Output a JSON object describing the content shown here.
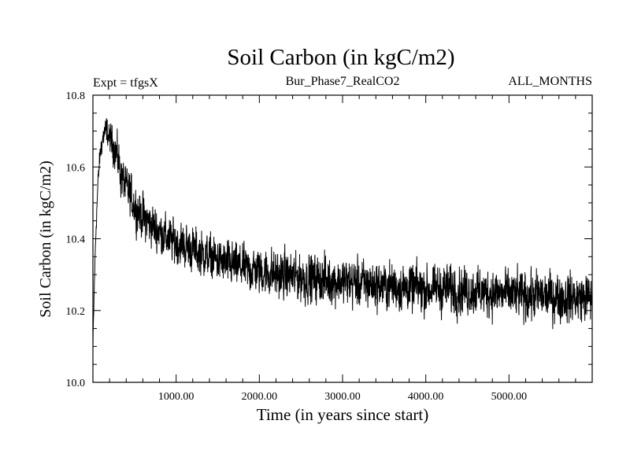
{
  "chart_data": {
    "type": "line",
    "title": "Soil Carbon (in kgC/m2)",
    "left_subtitle": "Expt = tfgsX",
    "center_subtitle": "Bur_Phase7_RealCO2",
    "right_subtitle": "ALL_MONTHS",
    "xlabel": "Time (in years since start)",
    "ylabel": "Soil Carbon (in kgC/m2)",
    "xlim": [
      0,
      6000
    ],
    "ylim": [
      10.0,
      10.8
    ],
    "x_ticks": [
      1000,
      2000,
      3000,
      4000,
      5000
    ],
    "x_tick_labels": [
      "1000.00",
      "2000.00",
      "3000.00",
      "4000.00",
      "5000.00"
    ],
    "y_ticks": [
      10.0,
      10.2,
      10.4,
      10.6,
      10.8
    ],
    "y_tick_labels": [
      "10.0",
      "10.2",
      "10.4",
      "10.6",
      "10.8"
    ],
    "series": [
      {
        "name": "Soil Carbon",
        "color": "#000000",
        "x": [
          0,
          20,
          40,
          60,
          80,
          100,
          130,
          160,
          200,
          250,
          300,
          350,
          400,
          450,
          500,
          600,
          700,
          800,
          900,
          1000,
          1200,
          1400,
          1600,
          1800,
          2000,
          2250,
          2500,
          2750,
          3000,
          3250,
          3500,
          3750,
          4000,
          4250,
          4500,
          4750,
          5000,
          5250,
          5500,
          5750,
          6000
        ],
        "values": [
          10.1,
          10.3,
          10.45,
          10.55,
          10.62,
          10.66,
          10.69,
          10.7,
          10.68,
          10.66,
          10.62,
          10.57,
          10.54,
          10.52,
          10.49,
          10.46,
          10.44,
          10.42,
          10.4,
          10.39,
          10.37,
          10.35,
          10.33,
          10.32,
          10.31,
          10.3,
          10.29,
          10.285,
          10.28,
          10.275,
          10.27,
          10.265,
          10.26,
          10.26,
          10.255,
          10.25,
          10.245,
          10.24,
          10.24,
          10.235,
          10.235
        ],
        "noise_amplitude": [
          0.02,
          0.03,
          0.03,
          0.03,
          0.03,
          0.03,
          0.035,
          0.04,
          0.04,
          0.05,
          0.06,
          0.06,
          0.06,
          0.06,
          0.06,
          0.06,
          0.06,
          0.06,
          0.06,
          0.06,
          0.06,
          0.06,
          0.06,
          0.06,
          0.065,
          0.065,
          0.065,
          0.065,
          0.065,
          0.065,
          0.065,
          0.065,
          0.065,
          0.065,
          0.065,
          0.065,
          0.065,
          0.065,
          0.065,
          0.065,
          0.065
        ]
      }
    ]
  }
}
